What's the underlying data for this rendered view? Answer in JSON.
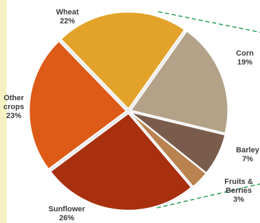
{
  "chart_data": {
    "type": "pie",
    "title": "",
    "slices": [
      {
        "label": "Wheat",
        "value_label": "22%",
        "value": 22,
        "color": "#e3a32b"
      },
      {
        "label": "Corn",
        "value_label": "19%",
        "value": 19,
        "color": "#b3a288"
      },
      {
        "label": "Barley",
        "value_label": "7%",
        "value": 7,
        "color": "#7a5c4d"
      },
      {
        "label": "Fruits & Berries",
        "value_label": "3%",
        "value": 3,
        "color": "#b9824f"
      },
      {
        "label": "Sunflower",
        "value_label": "26%",
        "value": 26,
        "color": "#a8300e"
      },
      {
        "label": "Other crops",
        "value_label": "23%",
        "value": 23,
        "color": "#de5a17"
      }
    ],
    "label_lines": {
      "Other crops": [
        "Other",
        "crops"
      ],
      "Fruits & Berries": [
        "Fruits &",
        "Berries"
      ]
    },
    "colors": {
      "connector": "#2fa05a",
      "background_strip": "#f7f2c4"
    }
  }
}
